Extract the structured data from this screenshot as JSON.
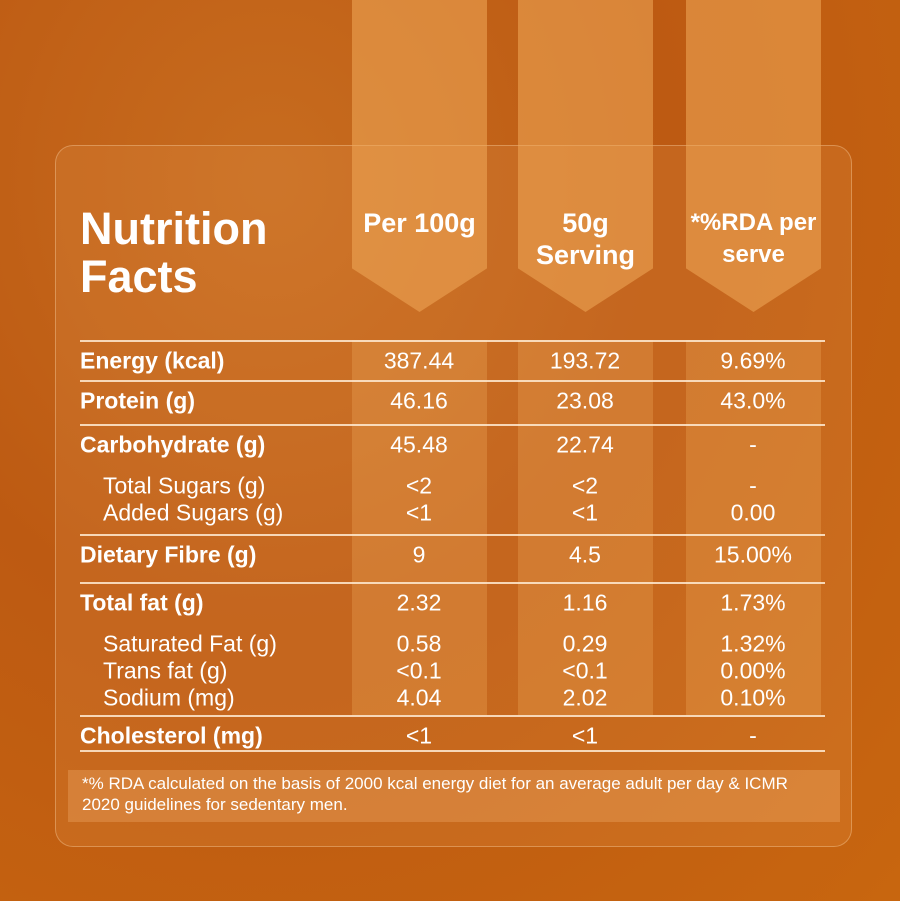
{
  "title": "Nutrition Facts",
  "columns": [
    "Per 100g",
    "50g Serving",
    "*%RDA per serve"
  ],
  "groups": [
    {
      "row": [
        "Energy (kcal)",
        "387.44",
        "193.72",
        "9.69%"
      ],
      "sub": []
    },
    {
      "row": [
        "Protein (g)",
        "46.16",
        "23.08",
        "43.0%"
      ],
      "sub": []
    },
    {
      "row": [
        "Carbohydrate (g)",
        "45.48",
        "22.74",
        "-"
      ],
      "sub": [
        [
          "Total Sugars (g)",
          "<2",
          "<2",
          "-"
        ],
        [
          "Added Sugars (g)",
          "<1",
          "<1",
          "0.00"
        ]
      ]
    },
    {
      "row": [
        "Dietary Fibre (g)",
        "9",
        "4.5",
        "15.00%"
      ],
      "sub": []
    },
    {
      "row": [
        "Total fat (g)",
        "2.32",
        "1.16",
        "1.73%"
      ],
      "sub": [
        [
          "Saturated Fat (g)",
          "0.58",
          "0.29",
          "1.32%"
        ],
        [
          "Trans fat (g)",
          "<0.1",
          "<0.1",
          "0.00%"
        ],
        [
          "Sodium (mg)",
          "4.04",
          "2.02",
          "0.10%"
        ]
      ]
    },
    {
      "row": [
        "Cholesterol (mg)",
        "<1",
        "<1",
        "-"
      ],
      "sub": []
    }
  ],
  "footnote": "*% RDA calculated on the basis of 2000 kcal energy diet for an average adult per day & ICMR 2020 guidelines for sedentary men."
}
